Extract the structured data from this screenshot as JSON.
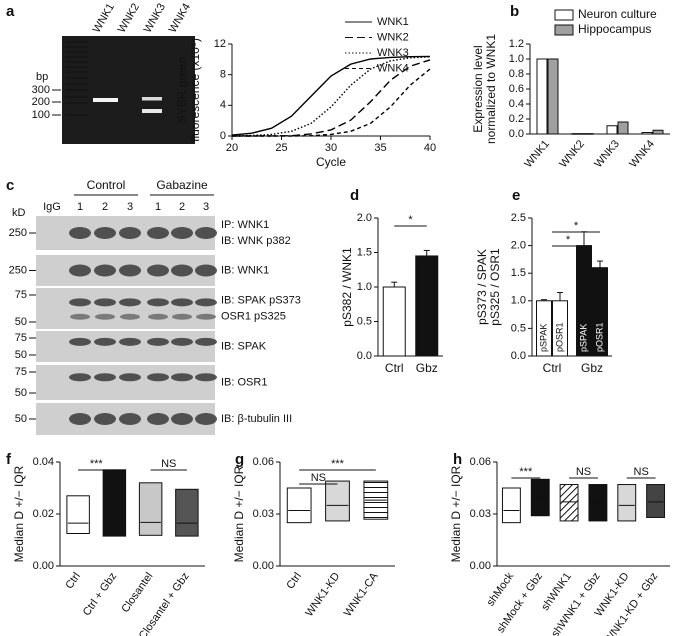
{
  "panel_labels": [
    "a",
    "b",
    "c",
    "d",
    "e",
    "f",
    "g",
    "h"
  ],
  "gel": {
    "lanes": [
      "WNK1",
      "WNK2",
      "WNK3",
      "WNK4"
    ],
    "size_unit": "bp",
    "sizes": [
      300,
      200,
      100
    ]
  },
  "blot": {
    "groups": [
      "Control",
      "Gabazine"
    ],
    "lanes": [
      "IgG",
      "1",
      "2",
      "3",
      "1",
      "2",
      "3"
    ],
    "mw_unit": "kD",
    "rows": [
      {
        "mw": [
          250
        ],
        "labels": [
          "IP: WNK1",
          "IB: WNK p382"
        ]
      },
      {
        "mw": [
          250
        ],
        "labels": [
          "IB: WNK1"
        ]
      },
      {
        "mw": [
          75,
          50
        ],
        "labels": [
          "IB: SPAK pS373",
          "OSR1 pS325"
        ]
      },
      {
        "mw": [
          75,
          50
        ],
        "labels": [
          "IB: SPAK"
        ]
      },
      {
        "mw": [
          75,
          50
        ],
        "labels": [
          "IB: OSR1"
        ]
      },
      {
        "mw": [
          50
        ],
        "labels": [
          "IB: β-tubulin III"
        ]
      }
    ]
  },
  "chart_data": [
    {
      "type": "line",
      "x": [
        20,
        22,
        24,
        26,
        28,
        30,
        32,
        34,
        36,
        38,
        40
      ],
      "series": [
        {
          "name": "WNK1",
          "color": "#000000",
          "dash": "none",
          "values": [
            0.12,
            0.36,
            1.02,
            2.58,
            5.2,
            7.82,
            9.38,
            10.04,
            10.25,
            10.35,
            10.38
          ]
        },
        {
          "name": "WNK2",
          "color": "#000000",
          "dash": "8,4",
          "values": [
            0,
            0,
            0.01,
            0.03,
            0.27,
            0.79,
            2.08,
            4.48,
            7.27,
            9.1,
            9.93
          ]
        },
        {
          "name": "WNK3",
          "color": "#000000",
          "dash": "1.5,2",
          "values": [
            0.02,
            0.07,
            0.21,
            0.61,
            1.65,
            3.8,
            6.62,
            8.74,
            9.79,
            10.2,
            10.33
          ]
        },
        {
          "name": "WNK4",
          "color": "#000000",
          "dash": "4,3",
          "values": [
            0,
            0,
            0,
            0,
            0.02,
            0.21,
            0.61,
            1.65,
            3.8,
            6.62,
            8.74
          ]
        }
      ],
      "xlim": [
        20,
        40
      ],
      "xticks": [
        20,
        25,
        30,
        35,
        40
      ],
      "ylim": [
        0,
        12
      ],
      "yticks": [
        0,
        4,
        8,
        12
      ],
      "xlabel": "Cycle",
      "ylabel": [
        "SYBR green",
        "fluorescence (x10⁸)"
      ]
    },
    {
      "type": "bar",
      "categories": [
        "WNK1",
        "WNK2",
        "WNK3",
        "WNK4"
      ],
      "series": [
        {
          "name": "Neuron culture",
          "color": "#ffffff",
          "values": [
            1.0,
            0.005,
            0.11,
            0.02
          ]
        },
        {
          "name": "Hippocampus",
          "color": "#a0a0a0",
          "values": [
            1.0,
            0.005,
            0.16,
            0.05
          ]
        }
      ],
      "ylim": [
        0,
        1.2
      ],
      "yticks": [
        {
          "value": 0,
          "label": "0.0"
        },
        0.2,
        0.4,
        0.6,
        0.8,
        {
          "value": 1,
          "label": "1.0"
        },
        1.2
      ],
      "ylabel": [
        "Expression level",
        "normalized to WNK1"
      ]
    },
    {
      "type": "bar",
      "categories": [
        "Ctrl",
        "Gbz"
      ],
      "values": [
        1.0,
        1.45
      ],
      "errors": [
        0.07,
        0.08
      ],
      "colors": [
        "#ffffff",
        "#111111"
      ],
      "ylim": [
        0,
        2
      ],
      "yticks": [
        {
          "value": 0,
          "label": "0.0"
        },
        0.5,
        {
          "value": 1,
          "label": "1.0"
        },
        1.5,
        {
          "value": 2,
          "label": "2.0"
        }
      ],
      "ylabel": "pS382 / WNK1",
      "annotations": [
        {
          "text": "*",
          "between": [
            0,
            1
          ]
        }
      ]
    },
    {
      "type": "bar",
      "categories": [
        "Ctrl",
        "Gbz"
      ],
      "series": [
        {
          "name": "pSPAK",
          "values": [
            1.0,
            2.0
          ],
          "errors": [
            0.02,
            0.25
          ]
        },
        {
          "name": "pOSR1",
          "values": [
            1.0,
            1.6
          ],
          "errors": [
            0.15,
            0.12
          ]
        }
      ],
      "category_colors": [
        "#ffffff",
        "#111111"
      ],
      "ylim": [
        0,
        2.5
      ],
      "yticks": [
        {
          "value": 0,
          "label": "0.0"
        },
        0.5,
        {
          "value": 1,
          "label": "1.0"
        },
        1.5,
        {
          "value": 2,
          "label": "2.0"
        },
        2.5
      ],
      "ylabel": [
        "pS373 / SPAK",
        "pS325 / OSR1"
      ],
      "annotations": [
        {
          "text": "*",
          "between": [
            0,
            1
          ],
          "series": 0
        },
        {
          "text": "*",
          "between": [
            0,
            1
          ],
          "series": 1
        }
      ]
    },
    {
      "type": "box",
      "categories": [
        "Ctrl",
        "Ctrl + Gbz",
        "Closantel",
        "Closantel + Gbz"
      ],
      "q1": [
        0.0125,
        0.0115,
        0.0118,
        0.0115
      ],
      "median": [
        0.0165,
        0.0225,
        0.0168,
        0.0165
      ],
      "q3": [
        0.027,
        0.037,
        0.032,
        0.0295
      ],
      "colors": [
        "#ffffff",
        "#111111",
        "#c8c8c8",
        "#555555"
      ],
      "hatch": [
        null,
        null,
        null,
        null
      ],
      "median_colors": [
        "#000000",
        "#ffffff",
        "#000000",
        "#ffffff"
      ],
      "ylim": [
        0,
        0.04
      ],
      "yticks": [
        {
          "value": 0,
          "label": "0.00"
        },
        0.02,
        0.04
      ],
      "ylabel": "Median D +/− IQR",
      "annotations": [
        {
          "text": "***",
          "between": [
            0,
            1
          ]
        },
        {
          "text": "NS",
          "between": [
            2,
            3
          ]
        }
      ]
    },
    {
      "type": "box",
      "categories": [
        "Ctrl",
        "WNK1-KD",
        "WNK1-CA"
      ],
      "q1": [
        0.025,
        0.026,
        0.027
      ],
      "median": [
        0.032,
        0.035,
        0.038
      ],
      "q3": [
        0.045,
        0.049,
        0.049
      ],
      "colors": [
        "#ffffff",
        "#d8d8d8",
        "#ffffff"
      ],
      "hatch": [
        null,
        null,
        "horizontal"
      ],
      "median_colors": [
        "#000000",
        "#000000",
        "#000000"
      ],
      "ylim": [
        0,
        0.06
      ],
      "yticks": [
        {
          "value": 0,
          "label": "0.00"
        },
        0.03,
        0.06
      ],
      "ylabel": "Median D +/− IQR",
      "annotations": [
        {
          "text": "NS",
          "between": [
            0,
            1
          ]
        },
        {
          "text": "***",
          "between": [
            0,
            2
          ]
        }
      ]
    },
    {
      "type": "box",
      "categories": [
        "shMock",
        "shMock + Gbz",
        "shWNK1",
        "shWNK1 + Gbz",
        "WNK1-KD",
        "WNK1-KD + Gbz"
      ],
      "q1": [
        0.025,
        0.029,
        0.026,
        0.026,
        0.026,
        0.028
      ],
      "median": [
        0.032,
        0.039,
        0.037,
        0.037,
        0.035,
        0.037
      ],
      "q3": [
        0.045,
        0.05,
        0.047,
        0.047,
        0.047,
        0.047
      ],
      "colors": [
        "#ffffff",
        "#111111",
        "#ffffff",
        "#111111",
        "#d8d8d8",
        "#444444"
      ],
      "hatch": [
        null,
        null,
        "diagonal",
        "diagonal",
        null,
        null
      ],
      "median_colors": [
        "#000000",
        "#ffffff",
        "#000000",
        "#ffffff",
        "#000000",
        "#ffffff"
      ],
      "ylim": [
        0,
        0.06
      ],
      "yticks": [
        {
          "value": 0,
          "label": "0.00"
        },
        0.03,
        0.06
      ],
      "ylabel": "Median D +/− IQR",
      "annotations": [
        {
          "text": "***",
          "between": [
            0,
            1
          ]
        },
        {
          "text": "NS",
          "between": [
            2,
            3
          ]
        },
        {
          "text": "NS",
          "between": [
            4,
            5
          ]
        }
      ]
    }
  ]
}
